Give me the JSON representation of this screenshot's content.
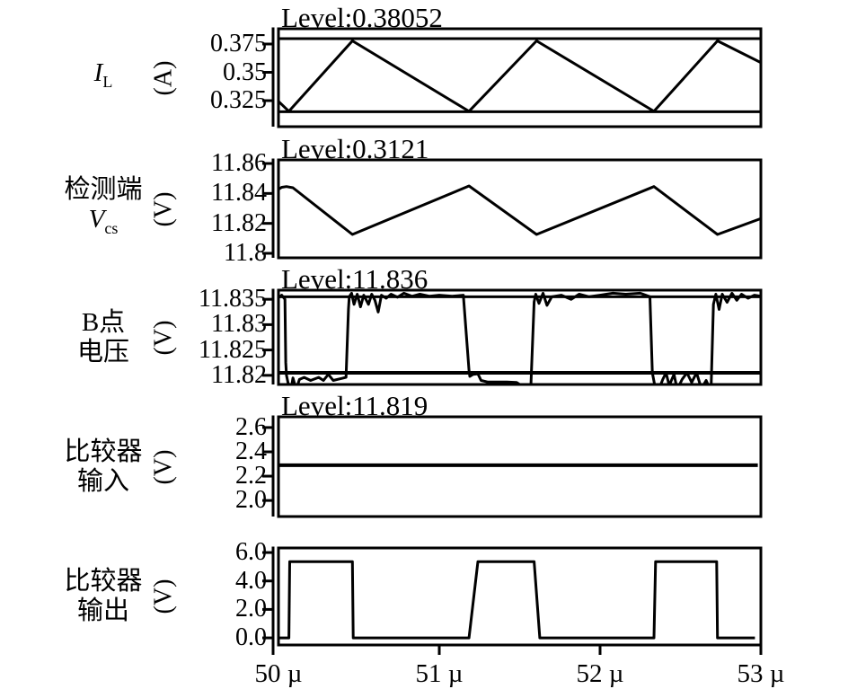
{
  "figure": {
    "background": "#ffffff",
    "line_color": "#000000"
  },
  "x_axis": {
    "domain": [
      50,
      53
    ],
    "grid": false,
    "ticks": [
      {
        "t": 50,
        "label": "50 µ"
      },
      {
        "t": 51,
        "label": "51 µ"
      },
      {
        "t": 52,
        "label": "52 µ"
      },
      {
        "t": 53,
        "label": "53 µ"
      }
    ]
  },
  "chart_data": [
    {
      "type": "line",
      "id": "inductor-current",
      "label_lines": [
        [
          {
            "t": "I",
            "i": true
          },
          {
            "t": "L",
            "s": true
          }
        ]
      ],
      "unit": "(A)",
      "level_label": "Level:0.38052",
      "level_value": 0.38052,
      "ylim": [
        0.302,
        0.3885
      ],
      "y_ticks": [
        {
          "v": 0.375,
          "label": "0.375"
        },
        {
          "v": 0.35,
          "label": "0.35"
        },
        {
          "v": 0.325,
          "label": "0.325"
        }
      ],
      "h_lines": [
        {
          "v": 0.3798,
          "w": 3
        },
        {
          "v": 0.3152,
          "w": 3
        }
      ],
      "stroke_w": 3,
      "series": [
        [
          50.0,
          0.3244
        ],
        [
          50.065,
          0.3156
        ],
        [
          50.46,
          0.3778
        ],
        [
          51.185,
          0.3156
        ],
        [
          51.605,
          0.3778
        ],
        [
          52.335,
          0.3156
        ],
        [
          52.73,
          0.3778
        ],
        [
          53.0,
          0.3586
        ]
      ]
    },
    {
      "type": "line",
      "id": "sense-terminal-voltage",
      "label_lines": [
        [
          {
            "t": "检测端"
          }
        ],
        [
          {
            "t": "V",
            "i": true
          },
          {
            "t": "cs",
            "s": true
          }
        ]
      ],
      "unit": "(V)",
      "level_label": "Level:0.3121",
      "level_value": 0.3121,
      "ylim": [
        11.797,
        11.8624
      ],
      "y_ticks": [
        {
          "v": 11.86,
          "label": "11.86"
        },
        {
          "v": 11.84,
          "label": "11.84"
        },
        {
          "v": 11.82,
          "label": "11.82"
        },
        {
          "v": 11.8,
          "label": "11.8"
        }
      ],
      "h_lines": [],
      "stroke_w": 3,
      "series": [
        [
          50.0,
          11.8428
        ],
        [
          50.02,
          11.8441
        ],
        [
          50.05,
          11.8446
        ],
        [
          50.09,
          11.8438
        ],
        [
          50.46,
          11.8126
        ],
        [
          51.185,
          11.845
        ],
        [
          51.605,
          11.8126
        ],
        [
          52.335,
          11.8446
        ],
        [
          52.73,
          11.8126
        ],
        [
          53.0,
          11.8232
        ]
      ]
    },
    {
      "type": "line",
      "id": "node-b-voltage",
      "label_lines": [
        [
          {
            "t": "B点"
          }
        ],
        [
          {
            "t": "电压"
          }
        ]
      ],
      "unit": "(V)",
      "level_label": "Level:11.836",
      "level_value": 11.836,
      "ylim": [
        11.8182,
        11.8368
      ],
      "y_ticks": [
        {
          "v": 11.835,
          "label": "11.835"
        },
        {
          "v": 11.83,
          "label": "11.83"
        },
        {
          "v": 11.825,
          "label": "11.825"
        },
        {
          "v": 11.82,
          "label": "11.82"
        }
      ],
      "h_lines": [
        {
          "v": 11.8355,
          "w": 3
        },
        {
          "v": 11.8205,
          "w": 4
        }
      ],
      "stroke_w": 3,
      "series": [
        [
          50.0,
          11.8353
        ],
        [
          50.02,
          11.8358
        ],
        [
          50.04,
          11.835
        ],
        [
          50.045,
          11.8225
        ],
        [
          50.05,
          11.82
        ],
        [
          50.06,
          11.8185
        ],
        [
          50.08,
          11.8175
        ],
        [
          50.09,
          11.8195
        ],
        [
          50.11,
          11.8172
        ],
        [
          50.13,
          11.8192
        ],
        [
          50.16,
          11.8196
        ],
        [
          50.2,
          11.819
        ],
        [
          50.25,
          11.8196
        ],
        [
          50.28,
          11.819
        ],
        [
          50.31,
          11.8202
        ],
        [
          50.34,
          11.819
        ],
        [
          50.38,
          11.8193
        ],
        [
          50.42,
          11.8196
        ],
        [
          50.435,
          11.833
        ],
        [
          50.44,
          11.8355
        ],
        [
          50.455,
          11.8362
        ],
        [
          50.47,
          11.834
        ],
        [
          50.49,
          11.836
        ],
        [
          50.51,
          11.8335
        ],
        [
          50.53,
          11.8358
        ],
        [
          50.56,
          11.834
        ],
        [
          50.58,
          11.836
        ],
        [
          50.6,
          11.8348
        ],
        [
          50.62,
          11.8325
        ],
        [
          50.64,
          11.8358
        ],
        [
          50.67,
          11.8352
        ],
        [
          50.7,
          11.836
        ],
        [
          50.74,
          11.8354
        ],
        [
          50.78,
          11.8362
        ],
        [
          50.83,
          11.8356
        ],
        [
          50.88,
          11.836
        ],
        [
          50.94,
          11.8356
        ],
        [
          51.0,
          11.8358
        ],
        [
          51.08,
          11.8356
        ],
        [
          51.15,
          11.8358
        ],
        [
          51.185,
          11.821
        ],
        [
          51.19,
          11.8198
        ],
        [
          51.21,
          11.8202
        ],
        [
          51.24,
          11.8203
        ],
        [
          51.26,
          11.819
        ],
        [
          51.3,
          11.8187
        ],
        [
          51.35,
          11.8187
        ],
        [
          51.42,
          11.8187
        ],
        [
          51.48,
          11.8186
        ],
        [
          51.53,
          11.8176
        ],
        [
          51.57,
          11.818
        ],
        [
          51.59,
          11.8345
        ],
        [
          51.6,
          11.836
        ],
        [
          51.62,
          11.8342
        ],
        [
          51.645,
          11.8362
        ],
        [
          51.67,
          11.8338
        ],
        [
          51.7,
          11.8355
        ],
        [
          51.76,
          11.8358
        ],
        [
          51.82,
          11.835
        ],
        [
          51.87,
          11.836
        ],
        [
          51.93,
          11.8355
        ],
        [
          52.0,
          11.8358
        ],
        [
          52.08,
          11.8362
        ],
        [
          52.16,
          11.836
        ],
        [
          52.25,
          11.8362
        ],
        [
          52.31,
          11.8355
        ],
        [
          52.325,
          11.8205
        ],
        [
          52.34,
          11.818
        ],
        [
          52.36,
          11.8168
        ],
        [
          52.39,
          11.8192
        ],
        [
          52.41,
          11.8205
        ],
        [
          52.43,
          11.818
        ],
        [
          52.46,
          11.8202
        ],
        [
          52.48,
          11.8172
        ],
        [
          52.51,
          11.8192
        ],
        [
          52.54,
          11.8205
        ],
        [
          52.57,
          11.8186
        ],
        [
          52.6,
          11.8205
        ],
        [
          52.63,
          11.8174
        ],
        [
          52.66,
          11.819
        ],
        [
          52.69,
          11.8168
        ],
        [
          52.705,
          11.834
        ],
        [
          52.72,
          11.836
        ],
        [
          52.74,
          11.833
        ],
        [
          52.76,
          11.836
        ],
        [
          52.79,
          11.8344
        ],
        [
          52.82,
          11.8362
        ],
        [
          52.85,
          11.8348
        ],
        [
          52.88,
          11.836
        ],
        [
          52.92,
          11.8352
        ],
        [
          52.96,
          11.8358
        ],
        [
          53.0,
          11.8356
        ]
      ]
    },
    {
      "type": "line",
      "id": "comparator-input",
      "label_lines": [
        [
          {
            "t": "比较器"
          }
        ],
        [
          {
            "t": "输入"
          }
        ]
      ],
      "unit": "(V)",
      "level_label": "Level:11.819",
      "level_value": 11.819,
      "ylim": [
        1.868,
        2.688
      ],
      "y_ticks": [
        {
          "v": 2.6,
          "label": "2.6"
        },
        {
          "v": 2.4,
          "label": "2.4"
        },
        {
          "v": 2.2,
          "label": "2.2"
        },
        {
          "v": 2.0,
          "label": "2.0"
        }
      ],
      "h_lines": [],
      "stroke_w": 4,
      "series": [
        [
          50.0,
          2.29
        ],
        [
          52.97,
          2.29
        ]
      ]
    },
    {
      "type": "line",
      "id": "comparator-output",
      "label_lines": [
        [
          {
            "t": "比较器"
          }
        ],
        [
          {
            "t": "输出"
          }
        ]
      ],
      "unit": "(V)",
      "level_label": null,
      "ylim": [
        -0.5,
        6.32
      ],
      "y_ticks": [
        {
          "v": 6.0,
          "label": "6.0"
        },
        {
          "v": 4.0,
          "label": "4.0"
        },
        {
          "v": 2.0,
          "label": "2.0"
        },
        {
          "v": 0.0,
          "label": "0.0"
        }
      ],
      "h_lines": [],
      "stroke_w": 3,
      "axis_extend": true,
      "series": [
        [
          50.0,
          0.0
        ],
        [
          50.065,
          0.0
        ],
        [
          50.07,
          5.36
        ],
        [
          50.46,
          5.36
        ],
        [
          50.465,
          0.0
        ],
        [
          51.185,
          0.0
        ],
        [
          51.24,
          5.36
        ],
        [
          51.59,
          5.36
        ],
        [
          51.625,
          0.0
        ],
        [
          52.335,
          0.0
        ],
        [
          52.345,
          5.36
        ],
        [
          52.725,
          5.36
        ],
        [
          52.73,
          0.0
        ],
        [
          52.955,
          0.0
        ]
      ]
    }
  ]
}
